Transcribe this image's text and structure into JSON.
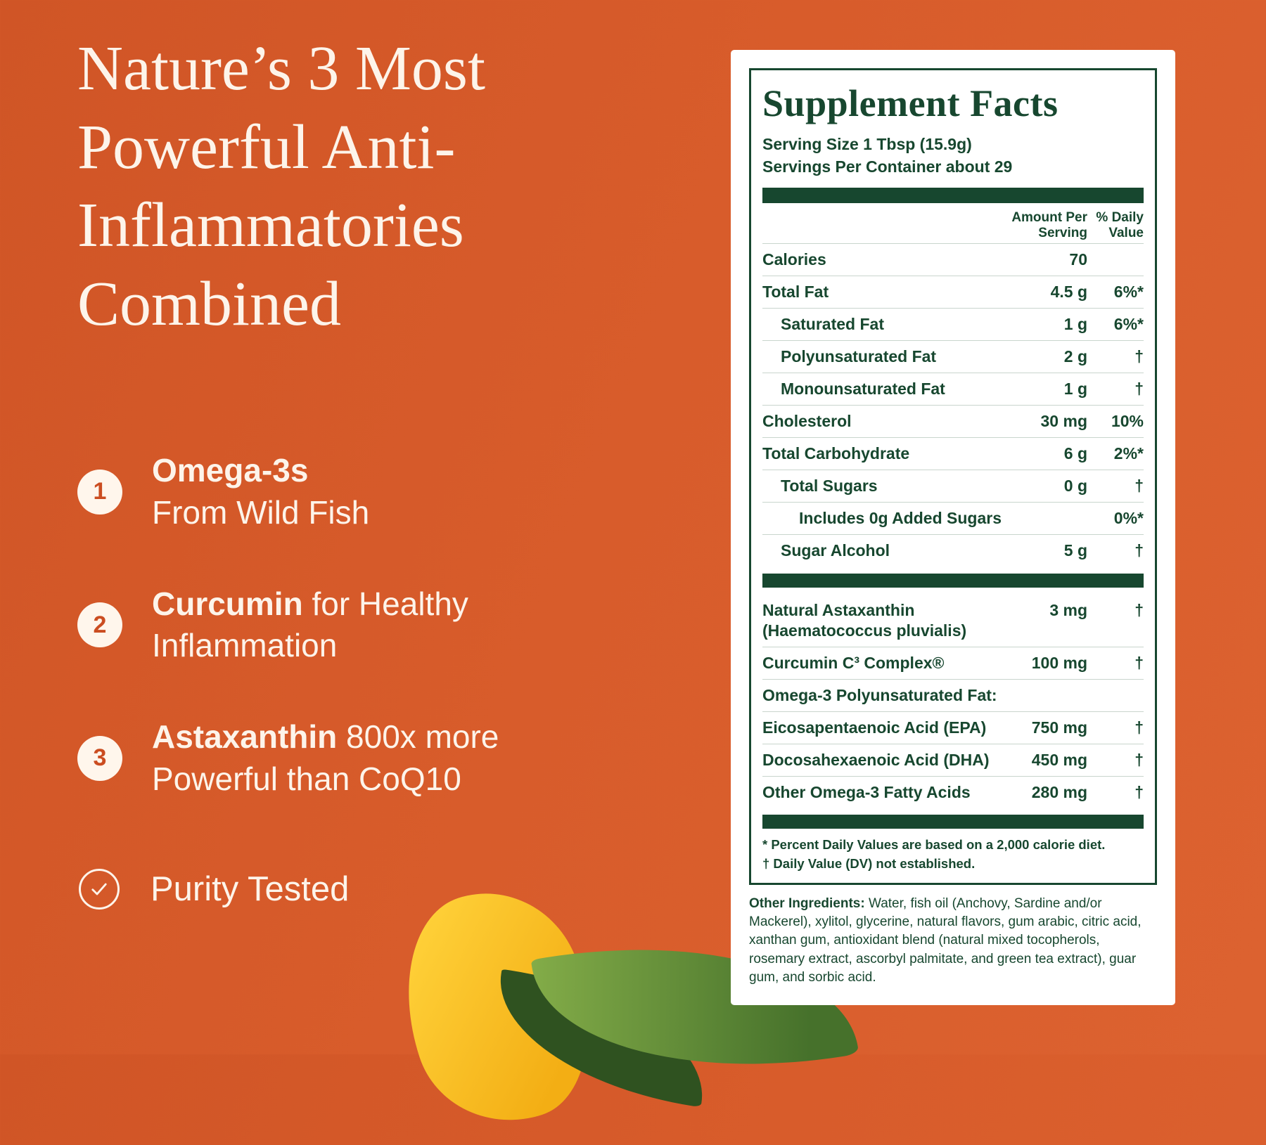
{
  "colors": {
    "background_orange": "#D85C2B",
    "dark_green": "#17472F",
    "badge_number_orange": "#CB4D21",
    "mango_yellow": "#F3AE14",
    "leaf_green": "#46712B",
    "card_white": "#FFFFFF"
  },
  "left": {
    "heading": "Nature’s 3 Most\nPowerful Anti-\nInflammatories\nCombined",
    "items": [
      {
        "number": "1",
        "line1_bold": "Omega-3s",
        "line1_rest": "",
        "line2": "From Wild Fish"
      },
      {
        "number": "2",
        "line1_bold": "Curcumin",
        "line1_rest": " for Healthy",
        "line2": "Inflammation"
      },
      {
        "number": "3",
        "line1_bold": "Astaxanthin",
        "line1_rest": " 800x more",
        "line2": "Powerful than CoQ10"
      }
    ],
    "purity_label": "Purity Tested",
    "check_icon": "check-circle-icon"
  },
  "facts": {
    "title": "Supplement Facts",
    "serving_size": "Serving Size 1 Tbsp (15.9g)",
    "servings_per_container": "Servings Per Container about 29",
    "col_amount": "Amount Per\nServing",
    "col_dv": "% Daily\nValue",
    "rows": [
      {
        "n": "Calories",
        "a": "70",
        "d": ""
      },
      {
        "n": "Total Fat",
        "a": "4.5 g",
        "d": "6%*"
      },
      {
        "n": "Saturated Fat",
        "a": "1 g",
        "d": "6%*",
        "i": 1
      },
      {
        "n": "Polyunsaturated Fat",
        "a": "2 g",
        "d": "†",
        "i": 1
      },
      {
        "n": "Monounsaturated Fat",
        "a": "1 g",
        "d": "†",
        "i": 1
      },
      {
        "n": "Cholesterol",
        "a": "30 mg",
        "d": "10%"
      },
      {
        "n": "Total Carbohydrate",
        "a": "6 g",
        "d": "2%*"
      },
      {
        "n": "Total Sugars",
        "a": "0 g",
        "d": "†",
        "i": 1
      },
      {
        "n": "Includes 0g Added Sugars",
        "a": "",
        "d": "0%*",
        "i": 2
      },
      {
        "n": "Sugar Alcohol",
        "a": "5 g",
        "d": "†",
        "i": 1,
        "bar": true
      },
      {
        "n": "Natural Astaxanthin\n(Haematococcus pluvialis)",
        "a": "3 mg",
        "d": "†"
      },
      {
        "n": "Curcumin C³ Complex®",
        "a": "100 mg",
        "d": "†"
      },
      {
        "n": "Omega-3 Polyunsaturated Fat:",
        "a": "",
        "d": ""
      },
      {
        "n": "Eicosapentaenoic Acid (EPA)",
        "a": "750 mg",
        "d": "†"
      },
      {
        "n": "Docosahexaenoic Acid (DHA)",
        "a": "450 mg",
        "d": "†"
      },
      {
        "n": "Other Omega-3 Fatty Acids",
        "a": "280 mg",
        "d": "†",
        "bar": true
      }
    ],
    "footnote_1": "* Percent Daily Values are based on a 2,000 calorie diet.",
    "footnote_2": "† Daily Value (DV) not established."
  },
  "other_ingredients": {
    "label": "Other Ingredients:",
    "text": " Water, fish oil (Anchovy, Sardine and/or Mackerel), xylitol, glycerine, natural flavors, gum arabic, citric acid, xanthan gum, antioxidant blend (natural mixed tocopherols, rosemary extract, ascorbyl palmitate, and green tea extract), guar gum, and sorbic acid."
  }
}
